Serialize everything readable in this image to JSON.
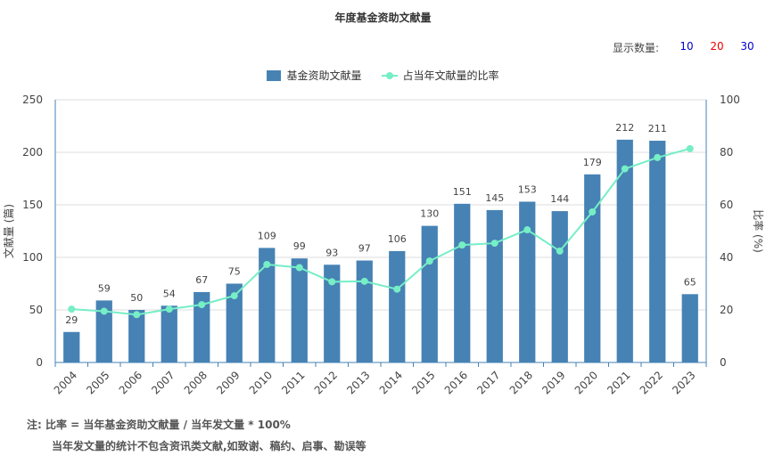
{
  "title": "年度基金资助文献量",
  "count_selector": {
    "label": "显示数量:",
    "options": [
      {
        "label": "10",
        "color": "#0000cc"
      },
      {
        "label": "20",
        "color": "#ee0000"
      },
      {
        "label": "30",
        "color": "#0000cc"
      }
    ]
  },
  "legend": {
    "bar_label": "基金资助文献量",
    "line_label": "占当年文献量的比率"
  },
  "notes": {
    "line1": "注:  比率 = 当年基金资助文献量 / 当年发文量 * 100%",
    "line2": "当年发文量的统计不包含资讯类文献,如致谢、稿约、启事、勘误等"
  },
  "chart_data": {
    "type": "bar",
    "categories": [
      "2004",
      "2005",
      "2006",
      "2007",
      "2008",
      "2009",
      "2010",
      "2011",
      "2012",
      "2013",
      "2014",
      "2015",
      "2016",
      "2017",
      "2018",
      "2019",
      "2020",
      "2021",
      "2022",
      "2023"
    ],
    "series": [
      {
        "name": "基金资助文献量",
        "type": "bar",
        "axis": "left",
        "values": [
          29,
          59,
          50,
          54,
          67,
          75,
          109,
          99,
          93,
          97,
          106,
          130,
          151,
          145,
          153,
          144,
          179,
          212,
          211,
          65
        ]
      },
      {
        "name": "占当年文献量的比率",
        "type": "line",
        "axis": "right",
        "values": [
          20.3,
          19.5,
          18.2,
          20.3,
          22.0,
          25.4,
          37.3,
          36.1,
          30.7,
          30.9,
          27.9,
          38.6,
          44.7,
          45.4,
          50.5,
          42.4,
          57.3,
          73.7,
          78.0,
          81.4
        ]
      }
    ],
    "ylabel": "文献量 (篇)",
    "ylabel_right": "比率 (%)",
    "ylim": [
      0,
      250
    ],
    "ylim_right": [
      0,
      100
    ],
    "yticks": [
      0,
      50,
      100,
      150,
      200,
      250
    ],
    "yticks_right": [
      0,
      20,
      40,
      60,
      80,
      100
    ],
    "colors": {
      "bar": "#4682b4",
      "line": "#76eec6",
      "axis": "#4682b4",
      "grid": "#dddddd"
    },
    "grid": true,
    "legend_position": "top-center"
  }
}
